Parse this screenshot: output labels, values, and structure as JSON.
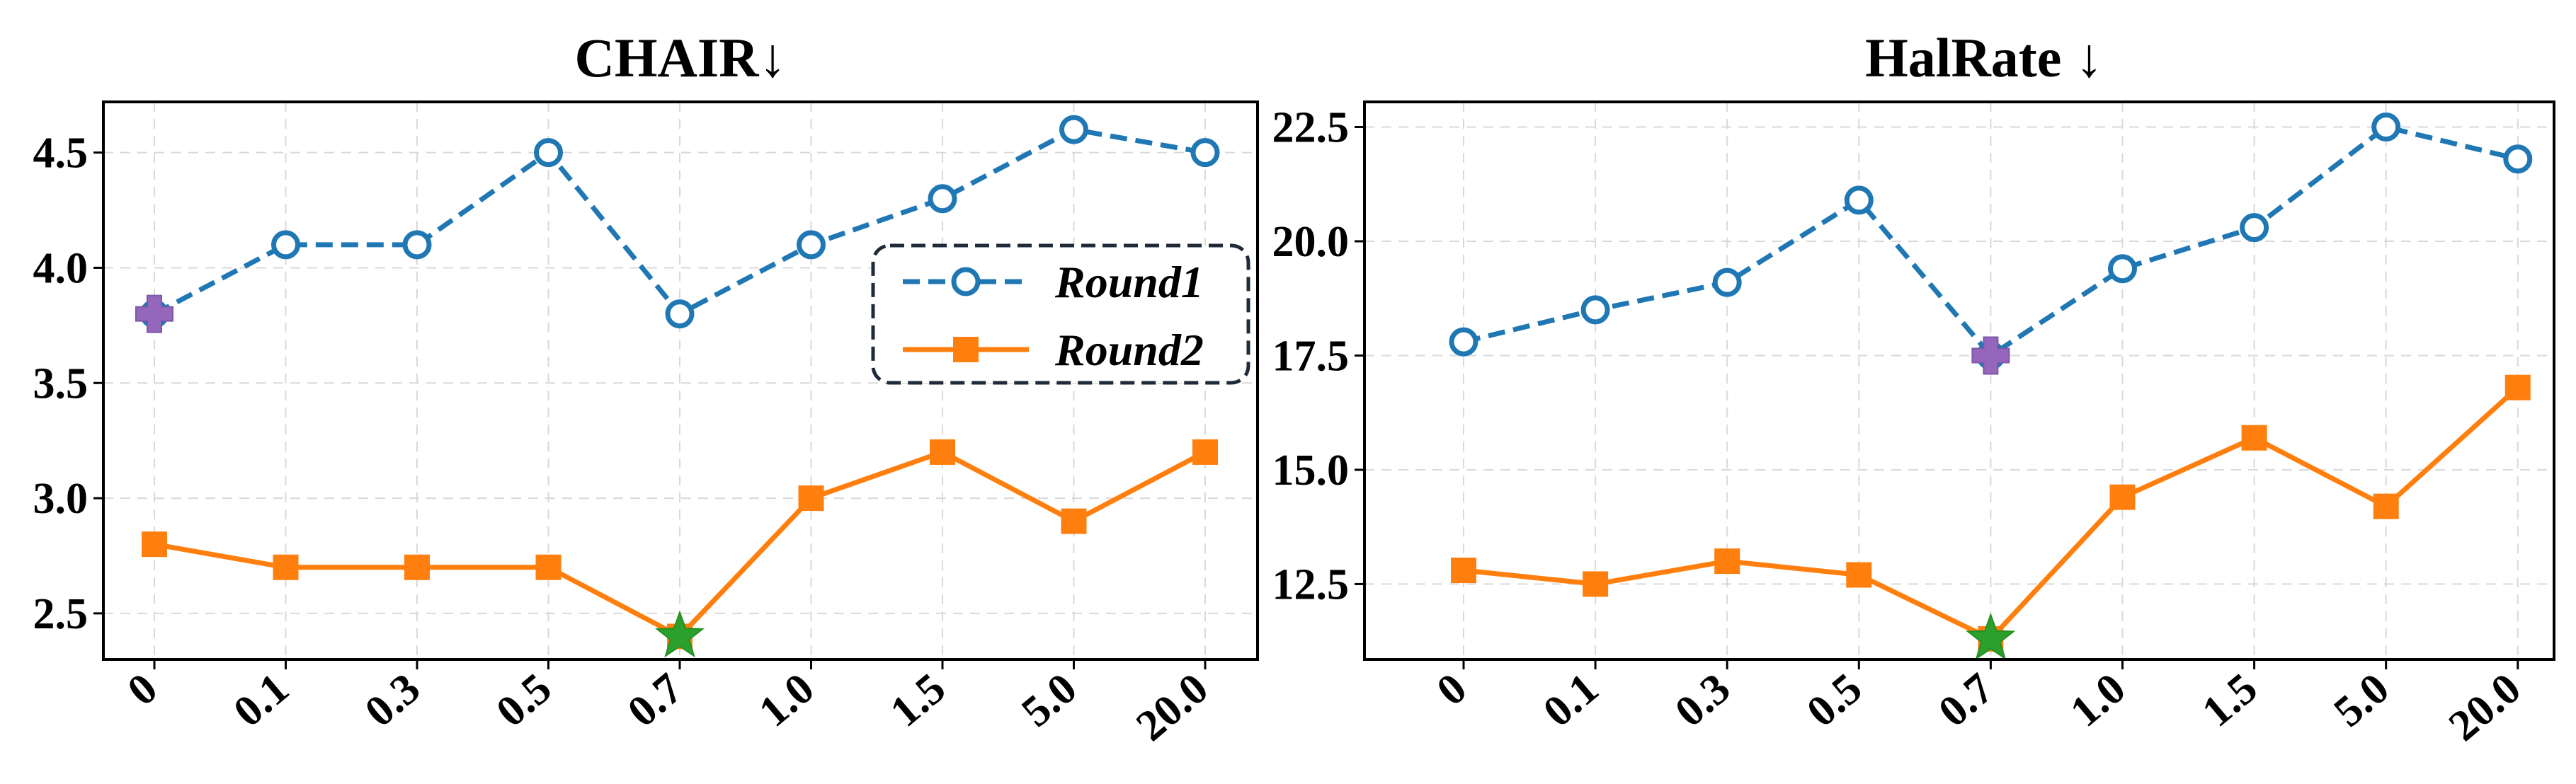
{
  "chart_data": [
    {
      "type": "line",
      "title": "CHAIR↓",
      "xlabel": "",
      "ylabel": "",
      "categories": [
        "0",
        "0.1",
        "0.3",
        "0.5",
        "0.7",
        "1.0",
        "1.5",
        "5.0",
        "20.0"
      ],
      "yticks": [
        "2.5",
        "3.0",
        "3.5",
        "4.0",
        "4.5"
      ],
      "ylim": [
        2.3,
        4.72
      ],
      "grid": true,
      "legend_position": "right",
      "series": [
        {
          "name": "Round1",
          "color": "#1f77b4",
          "style": "dashed",
          "marker": "open-circle",
          "values": [
            3.8,
            4.1,
            4.1,
            4.5,
            3.8,
            4.1,
            4.3,
            4.6,
            4.5
          ]
        },
        {
          "name": "Round2",
          "color": "#ff7f0e",
          "style": "solid",
          "marker": "square",
          "values": [
            2.8,
            2.7,
            2.7,
            2.7,
            2.4,
            3.0,
            3.2,
            2.9,
            3.2
          ]
        }
      ],
      "highlights": [
        {
          "series": "Round1",
          "category": "0",
          "value": 3.8,
          "marker": "plus",
          "color": "#9467bd"
        },
        {
          "series": "Round2",
          "category": "0.7",
          "value": 2.4,
          "marker": "star",
          "color": "#2ca02c"
        }
      ]
    },
    {
      "type": "line",
      "title": "HalRate ↓",
      "xlabel": "",
      "ylabel": "",
      "categories": [
        "0",
        "0.1",
        "0.3",
        "0.5",
        "0.7",
        "1.0",
        "1.5",
        "5.0",
        "20.0"
      ],
      "yticks": [
        "12.5",
        "15.0",
        "17.5",
        "20.0",
        "22.5"
      ],
      "ylim": [
        10.85,
        23.05
      ],
      "grid": true,
      "series": [
        {
          "name": "Round1",
          "color": "#1f77b4",
          "style": "dashed",
          "marker": "open-circle",
          "values": [
            17.8,
            18.5,
            19.1,
            20.9,
            17.5,
            19.4,
            20.3,
            22.5,
            21.8
          ]
        },
        {
          "name": "Round2",
          "color": "#ff7f0e",
          "style": "solid",
          "marker": "square",
          "values": [
            12.8,
            12.5,
            13.0,
            12.7,
            11.3,
            14.4,
            15.7,
            14.2,
            16.8
          ]
        }
      ],
      "highlights": [
        {
          "series": "Round1",
          "category": "0.7",
          "value": 17.5,
          "marker": "plus",
          "color": "#9467bd"
        },
        {
          "series": "Round2",
          "category": "0.7",
          "value": 11.3,
          "marker": "star",
          "color": "#2ca02c"
        }
      ]
    }
  ]
}
